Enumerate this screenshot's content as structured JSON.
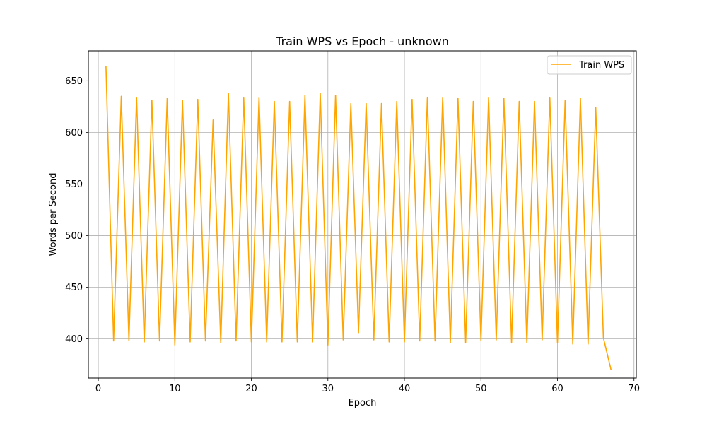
{
  "chart_data": {
    "type": "line",
    "title": "Train WPS vs Epoch - unknown",
    "xlabel": "Epoch",
    "ylabel": "Words per Second",
    "xlim": [
      -1.3,
      70.3
    ],
    "ylim": [
      362,
      679
    ],
    "xticks": [
      0,
      10,
      20,
      30,
      40,
      50,
      60,
      70
    ],
    "yticks": [
      400,
      450,
      500,
      550,
      600,
      650
    ],
    "grid": true,
    "legend_position": "top-right",
    "series": [
      {
        "name": "Train WPS",
        "color": "#ffa500",
        "x": [
          1,
          2,
          3,
          4,
          5,
          6,
          7,
          8,
          9,
          10,
          11,
          12,
          13,
          14,
          15,
          16,
          17,
          18,
          19,
          20,
          21,
          22,
          23,
          24,
          25,
          26,
          27,
          28,
          29,
          30,
          31,
          32,
          33,
          34,
          35,
          36,
          37,
          38,
          39,
          40,
          41,
          42,
          43,
          44,
          45,
          46,
          47,
          48,
          49,
          50,
          51,
          52,
          53,
          54,
          55,
          56,
          57,
          58,
          59,
          60,
          61,
          62,
          63,
          64,
          65,
          66,
          67
        ],
        "y": [
          664,
          398,
          635,
          398,
          634,
          397,
          631,
          398,
          633,
          394,
          631,
          397,
          632,
          398,
          612,
          396,
          638,
          398,
          634,
          397,
          634,
          397,
          630,
          397,
          630,
          397,
          636,
          397,
          638,
          394,
          636,
          399,
          628,
          406,
          628,
          399,
          628,
          397,
          630,
          397,
          632,
          398,
          634,
          398,
          634,
          396,
          633,
          396,
          630,
          398,
          634,
          399,
          633,
          396,
          630,
          396,
          630,
          399,
          634,
          396,
          631,
          395,
          633,
          395,
          624,
          401,
          370
        ]
      }
    ]
  }
}
